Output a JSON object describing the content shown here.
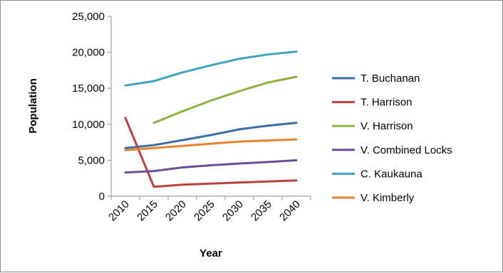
{
  "chart_data": {
    "type": "line",
    "title": "",
    "xlabel": "Year",
    "ylabel": "Population",
    "categories": [
      "2010",
      "2015",
      "2020",
      "2025",
      "2030",
      "2035",
      "2040"
    ],
    "y_ticks": [
      "0",
      "5,000",
      "10,000",
      "15,000",
      "20,000",
      "25,000"
    ],
    "ylim": [
      0,
      25000
    ],
    "grid": false,
    "legend_position": "right",
    "series": [
      {
        "name": "T. Buchanan",
        "color": "#3a6ea5",
        "values": [
          6700,
          7100,
          7800,
          8500,
          9300,
          9800,
          10200
        ]
      },
      {
        "name": "T. Harrison",
        "color": "#b7413e",
        "values": [
          10900,
          1300,
          1600,
          1750,
          1900,
          2050,
          2200
        ]
      },
      {
        "name": "V. Harrison",
        "color": "#8fb044",
        "values": [
          null,
          10200,
          11800,
          13300,
          14600,
          15800,
          16600
        ]
      },
      {
        "name": "V. Combined Locks",
        "color": "#6f4c9b",
        "values": [
          3300,
          3500,
          4000,
          4300,
          4550,
          4750,
          5000
        ]
      },
      {
        "name": "C. Kaukauna",
        "color": "#3ea3bc",
        "values": [
          15400,
          16000,
          17200,
          18200,
          19100,
          19700,
          20100
        ]
      },
      {
        "name": "V. Kimberly",
        "color": "#e9832c",
        "values": [
          6400,
          6700,
          7000,
          7300,
          7600,
          7750,
          7900
        ]
      }
    ]
  }
}
